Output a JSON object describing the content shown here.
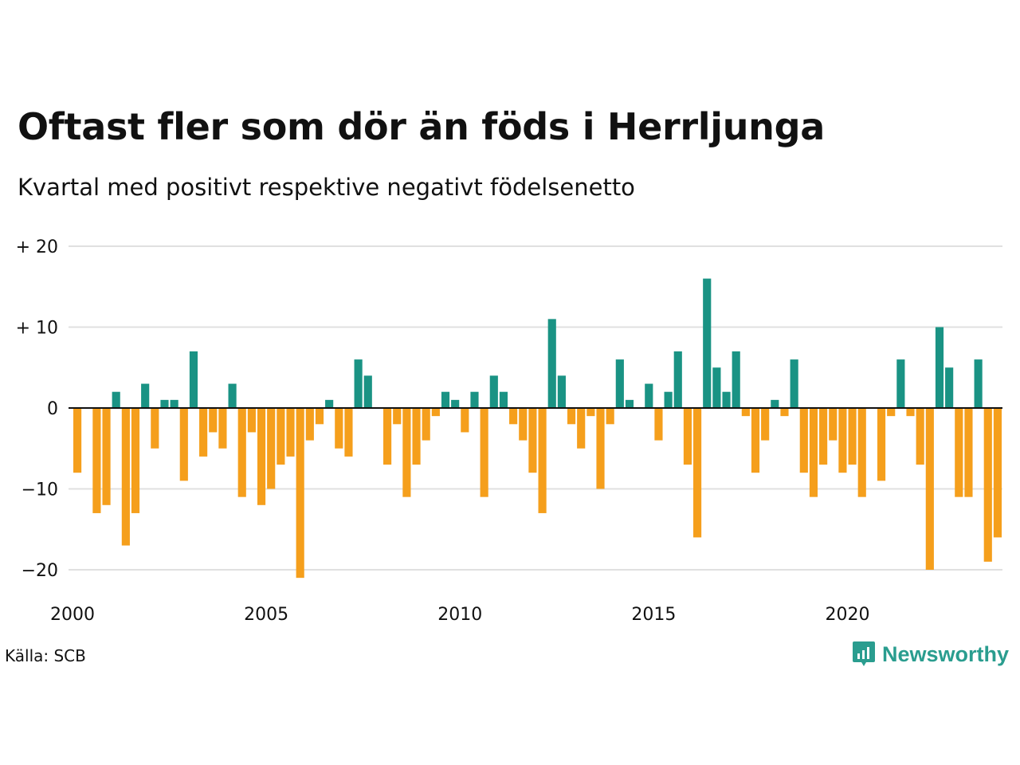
{
  "title": "Oftast fler som dör än föds i Herrljunga",
  "subtitle": "Kvartal med positivt respektive negativt födelsenetto",
  "source": "Källa: SCB",
  "brand": {
    "name": "Newsworthy",
    "icon": "newsworthy-logo-icon"
  },
  "colors": {
    "positive": "#1a9384",
    "negative": "#f59f1c",
    "grid": "#e0e0e0",
    "baseline": "#111111"
  },
  "chart_data": {
    "type": "bar",
    "x_start": 2000,
    "periods_per_year": 4,
    "values": [
      -8,
      0,
      -13,
      -12,
      2,
      -17,
      -13,
      3,
      -5,
      1,
      1,
      -9,
      7,
      -6,
      -3,
      -5,
      3,
      -11,
      -3,
      -12,
      -10,
      -7,
      -6,
      -21,
      -4,
      -2,
      1,
      -5,
      -6,
      6,
      4,
      0,
      -7,
      -2,
      -11,
      -7,
      -4,
      -1,
      2,
      1,
      -3,
      2,
      -11,
      4,
      2,
      -2,
      -4,
      -8,
      -13,
      11,
      4,
      -2,
      -5,
      -1,
      -10,
      -2,
      6,
      1,
      0,
      3,
      -4,
      2,
      7,
      -7,
      -16,
      16,
      5,
      2,
      7,
      -1,
      -8,
      -4,
      1,
      -1,
      6,
      -8,
      -11,
      -7,
      -4,
      -8,
      -7,
      -11,
      0,
      -9,
      -1,
      6,
      -1,
      -7,
      -20,
      10,
      5,
      -11,
      -11,
      6,
      -19,
      -16
    ],
    "ylim": [
      -22,
      20
    ],
    "y_ticks": [
      {
        "value": 20,
        "label": "+ 20"
      },
      {
        "value": 10,
        "label": "+ 10"
      },
      {
        "value": 0,
        "label": "0"
      },
      {
        "value": -10,
        "label": "−10"
      },
      {
        "value": -20,
        "label": "−20"
      }
    ],
    "x_ticks": [
      {
        "value": 2000,
        "label": "2000"
      },
      {
        "value": 2005,
        "label": "2005"
      },
      {
        "value": 2010,
        "label": "2010"
      },
      {
        "value": 2015,
        "label": "2015"
      },
      {
        "value": 2020,
        "label": "2020"
      }
    ],
    "xlim": [
      2000,
      2024
    ]
  }
}
